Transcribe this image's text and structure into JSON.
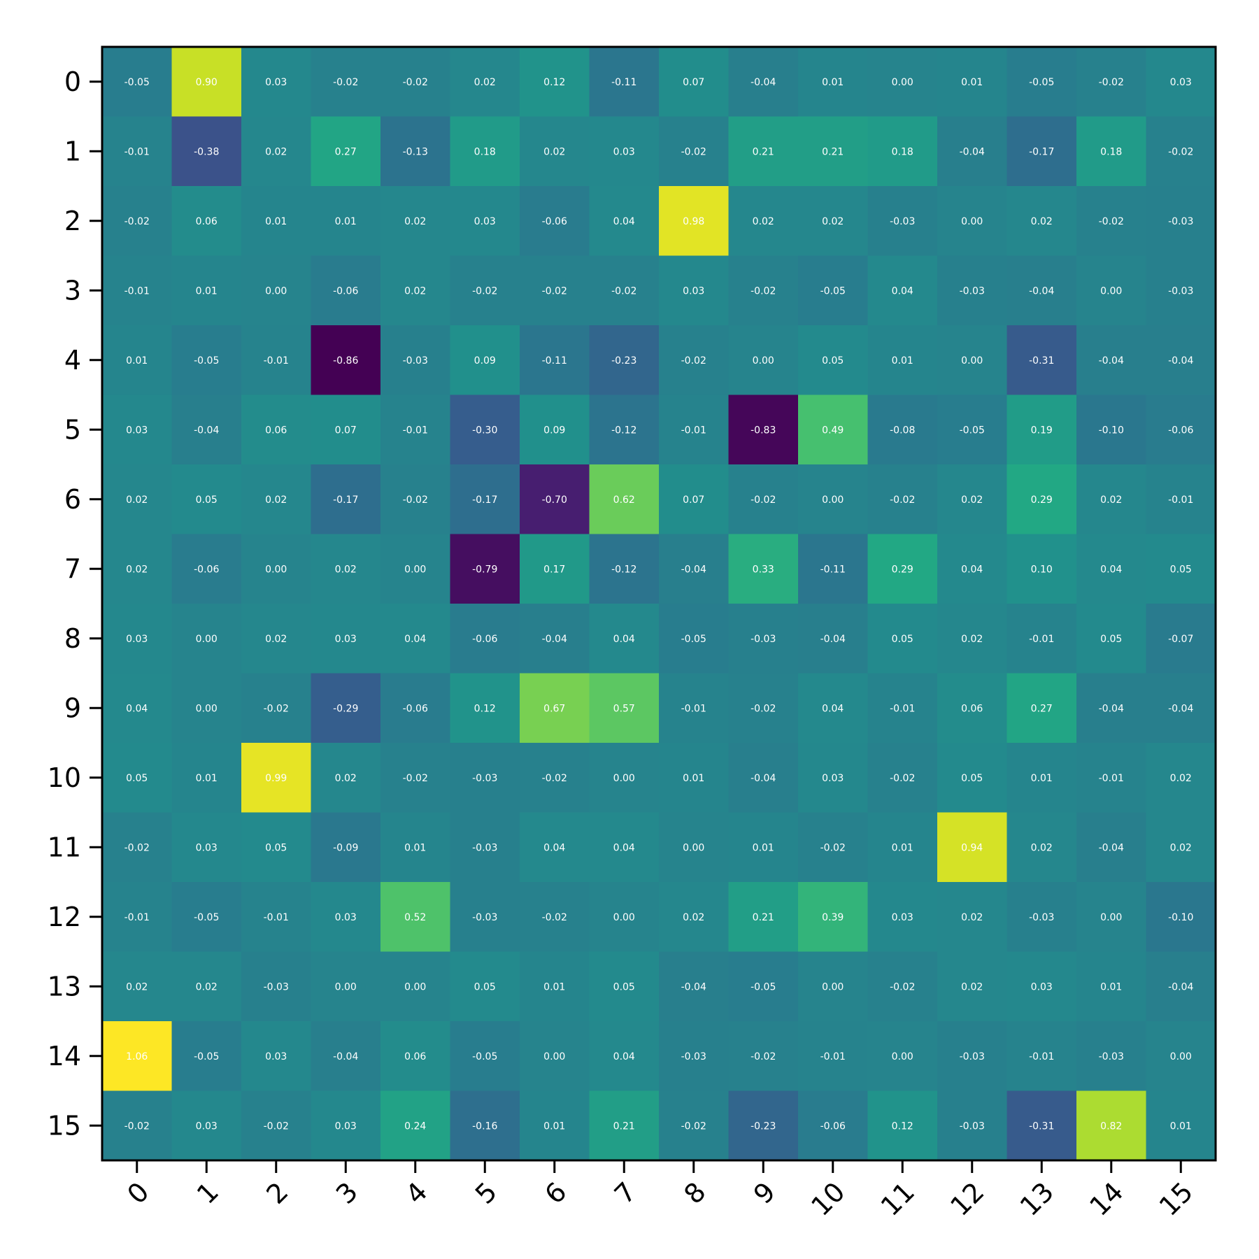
{
  "chart_data": {
    "type": "heatmap",
    "title": "",
    "xlabel": "",
    "ylabel": "",
    "x_categories": [
      "0",
      "1",
      "2",
      "3",
      "4",
      "5",
      "6",
      "7",
      "8",
      "9",
      "10",
      "11",
      "12",
      "13",
      "14",
      "15"
    ],
    "y_categories": [
      "0",
      "1",
      "2",
      "3",
      "4",
      "5",
      "6",
      "7",
      "8",
      "9",
      "10",
      "11",
      "12",
      "13",
      "14",
      "15"
    ],
    "value_range": [
      -0.86,
      1.06
    ],
    "colormap": "viridis",
    "cell_text_color": "#ffffff",
    "values": [
      [
        -0.05,
        0.9,
        0.03,
        -0.02,
        -0.02,
        0.02,
        0.12,
        -0.11,
        0.07,
        -0.04,
        0.01,
        0.0,
        0.01,
        -0.05,
        -0.02,
        0.03
      ],
      [
        -0.01,
        -0.38,
        0.02,
        0.27,
        -0.13,
        0.18,
        0.02,
        0.03,
        -0.02,
        0.21,
        0.21,
        0.18,
        -0.04,
        -0.17,
        0.18,
        -0.02
      ],
      [
        -0.02,
        0.06,
        0.01,
        0.01,
        0.02,
        0.03,
        -0.06,
        0.04,
        0.98,
        0.02,
        0.02,
        -0.03,
        -0.0,
        0.02,
        -0.02,
        -0.03
      ],
      [
        -0.01,
        0.01,
        -0.0,
        -0.06,
        0.02,
        -0.02,
        -0.02,
        -0.02,
        0.03,
        -0.02,
        -0.05,
        0.04,
        -0.03,
        -0.04,
        0.0,
        -0.03
      ],
      [
        0.01,
        -0.05,
        -0.01,
        -0.86,
        -0.03,
        0.09,
        -0.11,
        -0.23,
        -0.02,
        -0.0,
        0.05,
        0.01,
        0.0,
        -0.31,
        -0.04,
        -0.04
      ],
      [
        0.03,
        -0.04,
        0.06,
        0.07,
        -0.01,
        -0.3,
        0.09,
        -0.12,
        -0.01,
        -0.83,
        0.49,
        -0.08,
        -0.05,
        0.19,
        -0.1,
        -0.06
      ],
      [
        0.02,
        0.05,
        0.02,
        -0.17,
        -0.02,
        -0.17,
        -0.7,
        0.62,
        0.07,
        -0.02,
        -0.0,
        -0.02,
        0.02,
        0.29,
        0.02,
        -0.01
      ],
      [
        0.02,
        -0.06,
        -0.0,
        0.02,
        -0.0,
        -0.79,
        0.17,
        -0.12,
        -0.04,
        0.33,
        -0.11,
        0.29,
        0.04,
        0.1,
        0.04,
        0.05
      ],
      [
        0.03,
        0.0,
        0.02,
        0.03,
        0.04,
        -0.06,
        -0.04,
        0.04,
        -0.05,
        -0.03,
        -0.04,
        0.05,
        0.02,
        -0.01,
        0.05,
        -0.07
      ],
      [
        0.04,
        -0.0,
        -0.02,
        -0.29,
        -0.06,
        0.12,
        0.67,
        0.57,
        -0.01,
        -0.02,
        0.04,
        -0.01,
        0.06,
        0.27,
        -0.04,
        -0.04
      ],
      [
        0.05,
        0.01,
        0.99,
        0.02,
        -0.02,
        -0.03,
        -0.02,
        0.0,
        0.01,
        -0.04,
        0.03,
        -0.02,
        0.05,
        0.01,
        -0.01,
        0.02
      ],
      [
        -0.02,
        0.03,
        0.05,
        -0.09,
        0.01,
        -0.03,
        0.04,
        0.04,
        -0.0,
        0.01,
        -0.02,
        0.01,
        0.94,
        0.02,
        -0.04,
        0.02
      ],
      [
        -0.01,
        -0.05,
        -0.01,
        0.03,
        0.52,
        -0.03,
        -0.02,
        0.0,
        0.02,
        0.21,
        0.39,
        0.03,
        0.02,
        -0.03,
        -0.0,
        -0.1
      ],
      [
        0.02,
        0.02,
        -0.03,
        -0.0,
        0.0,
        0.05,
        0.01,
        0.05,
        -0.04,
        -0.05,
        -0.0,
        -0.02,
        0.02,
        0.03,
        0.01,
        -0.04
      ],
      [
        1.06,
        -0.05,
        0.03,
        -0.04,
        0.06,
        -0.05,
        0.0,
        0.04,
        -0.03,
        -0.02,
        -0.01,
        -0.0,
        -0.03,
        -0.01,
        -0.03,
        -0.0
      ],
      [
        -0.02,
        0.03,
        -0.02,
        0.03,
        0.24,
        -0.16,
        0.01,
        0.21,
        -0.02,
        -0.23,
        -0.06,
        0.12,
        -0.03,
        -0.31,
        0.82,
        0.01
      ]
    ]
  }
}
